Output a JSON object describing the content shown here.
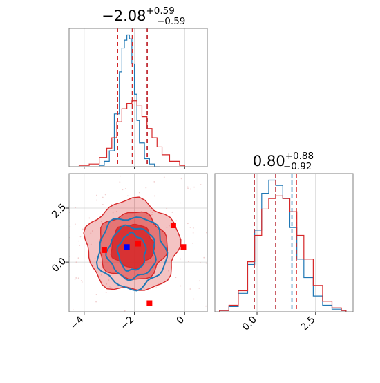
{
  "chart_data": [
    {
      "type": "histogram",
      "panel": "marginal-param-1",
      "title": {
        "value": "−2.08",
        "upper": "+0.59",
        "lower": "−0.59"
      },
      "xlim": [
        -4.6,
        0.9
      ],
      "grid": true,
      "series": [
        {
          "color": "#1f77b4",
          "quantiles": [
            -2.67,
            -2.08,
            -1.49
          ],
          "x": [
            -3.4,
            -3.2,
            -3.0,
            -2.8,
            -2.6,
            -2.5,
            -2.4,
            -2.3,
            -2.2,
            -2.1,
            -2.0,
            -1.9,
            -1.8,
            -1.6,
            -1.4,
            -1.2
          ],
          "y": [
            0.01,
            0.04,
            0.12,
            0.4,
            0.72,
            0.9,
            0.96,
            1.0,
            0.97,
            0.78,
            0.55,
            0.35,
            0.18,
            0.06,
            0.02,
            0.0
          ]
        },
        {
          "color": "#d62728",
          "quantiles": [
            -2.67,
            -2.08,
            -1.49
          ],
          "x": [
            -4.2,
            -3.8,
            -3.4,
            -3.1,
            -2.9,
            -2.7,
            -2.5,
            -2.3,
            -2.1,
            -1.9,
            -1.7,
            -1.5,
            -1.3,
            -1.1,
            -0.9,
            -0.6,
            -0.2
          ],
          "y": [
            0.01,
            0.02,
            0.07,
            0.14,
            0.22,
            0.34,
            0.44,
            0.48,
            0.5,
            0.46,
            0.38,
            0.29,
            0.22,
            0.15,
            0.09,
            0.04,
            0.01
          ]
        }
      ]
    },
    {
      "type": "histogram",
      "panel": "marginal-param-2",
      "title": {
        "value": "0.80",
        "upper": "+0.88",
        "lower": "−0.92"
      },
      "xlim": [
        -1.8,
        4.1
      ],
      "grid": true,
      "series": [
        {
          "color": "#1f77b4",
          "quantiles": [
            -0.12,
            0.8,
            1.49
          ],
          "x": [
            -1.6,
            -1.2,
            -0.8,
            -0.4,
            -0.1,
            0.2,
            0.5,
            0.8,
            1.1,
            1.4,
            1.7,
            2.0,
            2.4,
            2.8,
            3.2,
            3.6
          ],
          "y": [
            0.01,
            0.04,
            0.14,
            0.36,
            0.62,
            0.9,
            1.0,
            0.96,
            0.86,
            0.64,
            0.4,
            0.26,
            0.12,
            0.05,
            0.02,
            0.01
          ]
        },
        {
          "color": "#d62728",
          "quantiles": [
            -0.12,
            0.8,
            1.68
          ],
          "x": [
            -1.6,
            -1.2,
            -0.8,
            -0.4,
            -0.1,
            0.2,
            0.5,
            0.8,
            1.1,
            1.4,
            1.7,
            2.0,
            2.4,
            2.8,
            3.2,
            3.6
          ],
          "y": [
            0.01,
            0.05,
            0.16,
            0.38,
            0.58,
            0.78,
            0.86,
            0.88,
            0.86,
            0.76,
            0.58,
            0.4,
            0.2,
            0.08,
            0.03,
            0.01
          ]
        }
      ]
    },
    {
      "type": "contour",
      "panel": "joint-param-1-vs-param-2",
      "xlim": [
        -4.6,
        0.9
      ],
      "ylim": [
        -2.3,
        4.1
      ],
      "grid": true,
      "series": [
        {
          "color": "#d62728",
          "filled": true,
          "center": [
            -2.08,
            0.75
          ],
          "levels": [
            {
              "rx": 1.85,
              "ry": 2.1,
              "fill_opacity": 0.28
            },
            {
              "rx": 1.35,
              "ry": 1.55,
              "fill_opacity": 0.5
            },
            {
              "rx": 0.85,
              "ry": 1.0,
              "fill_opacity": 0.85
            }
          ]
        },
        {
          "color": "#1f77b4",
          "filled": false,
          "center": [
            -2.1,
            0.45
          ],
          "levels": [
            {
              "rx": 1.35,
              "ry": 1.65
            },
            {
              "rx": 0.95,
              "ry": 1.2
            },
            {
              "rx": 0.55,
              "ry": 0.85
            }
          ]
        }
      ],
      "markers": [
        {
          "color": "#ff0000",
          "shape": "square",
          "points": [
            [
              -3.2,
              0.55
            ],
            [
              -0.45,
              1.7
            ],
            [
              -0.05,
              0.7
            ],
            [
              -1.4,
              -1.9
            ],
            [
              -1.85,
              0.85
            ]
          ]
        },
        {
          "color": "#0000ff",
          "shape": "square",
          "points": [
            [
              -2.3,
              0.7
            ]
          ]
        }
      ],
      "x_ticks": [
        -4,
        -2,
        0
      ],
      "x_tick_labels": [
        "−4",
        "−2",
        "0"
      ],
      "y_ticks": [
        0.0,
        2.5
      ],
      "y_tick_labels": [
        "0.0",
        "2.5"
      ],
      "x2_ticks": [
        0.0,
        2.5
      ],
      "x2_tick_labels": [
        "0.0",
        "2.5"
      ]
    }
  ]
}
